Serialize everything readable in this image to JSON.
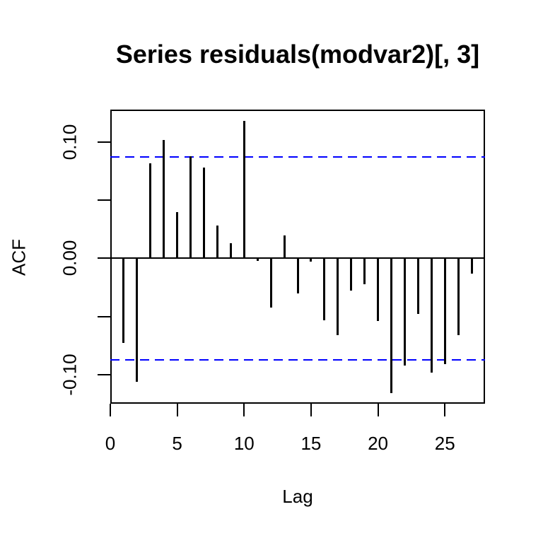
{
  "chart_data": {
    "type": "bar",
    "subtype": "acf-lollipop",
    "title": "Series residuals(modvar2)[, 3]",
    "xlabel": "Lag",
    "ylabel": "ACF",
    "x": [
      1,
      2,
      3,
      4,
      5,
      6,
      7,
      8,
      9,
      10,
      11,
      12,
      13,
      14,
      15,
      16,
      17,
      18,
      19,
      20,
      21,
      22,
      23,
      24,
      25,
      26,
      27
    ],
    "values": [
      -0.073,
      -0.106,
      0.082,
      0.102,
      0.04,
      0.088,
      0.078,
      0.028,
      0.013,
      0.118,
      -0.002,
      -0.042,
      0.02,
      -0.03,
      -0.003,
      -0.053,
      -0.066,
      -0.028,
      -0.022,
      -0.054,
      -0.116,
      -0.092,
      -0.048,
      -0.098,
      -0.091,
      -0.066,
      -0.013
    ],
    "confidence_bounds": [
      -0.087,
      0.087
    ],
    "confidence_line_style": "dashed",
    "baseline": 0,
    "xlim": [
      0,
      28
    ],
    "ylim": [
      -0.125,
      0.128
    ],
    "x_ticks": [
      0,
      5,
      10,
      15,
      20,
      25
    ],
    "y_ticks": [
      {
        "value": 0.1,
        "label": "0.10"
      },
      {
        "value": 0.05,
        "label": ""
      },
      {
        "value": 0.0,
        "label": "0.00"
      },
      {
        "value": -0.05,
        "label": ""
      },
      {
        "value": -0.1,
        "label": "-0.10"
      }
    ],
    "grid": false,
    "legend": null,
    "colors": {
      "bar": "#000000",
      "confidence": "#0000FF",
      "axis": "#000000",
      "text": "#000000",
      "background": "#FFFFFF"
    }
  }
}
